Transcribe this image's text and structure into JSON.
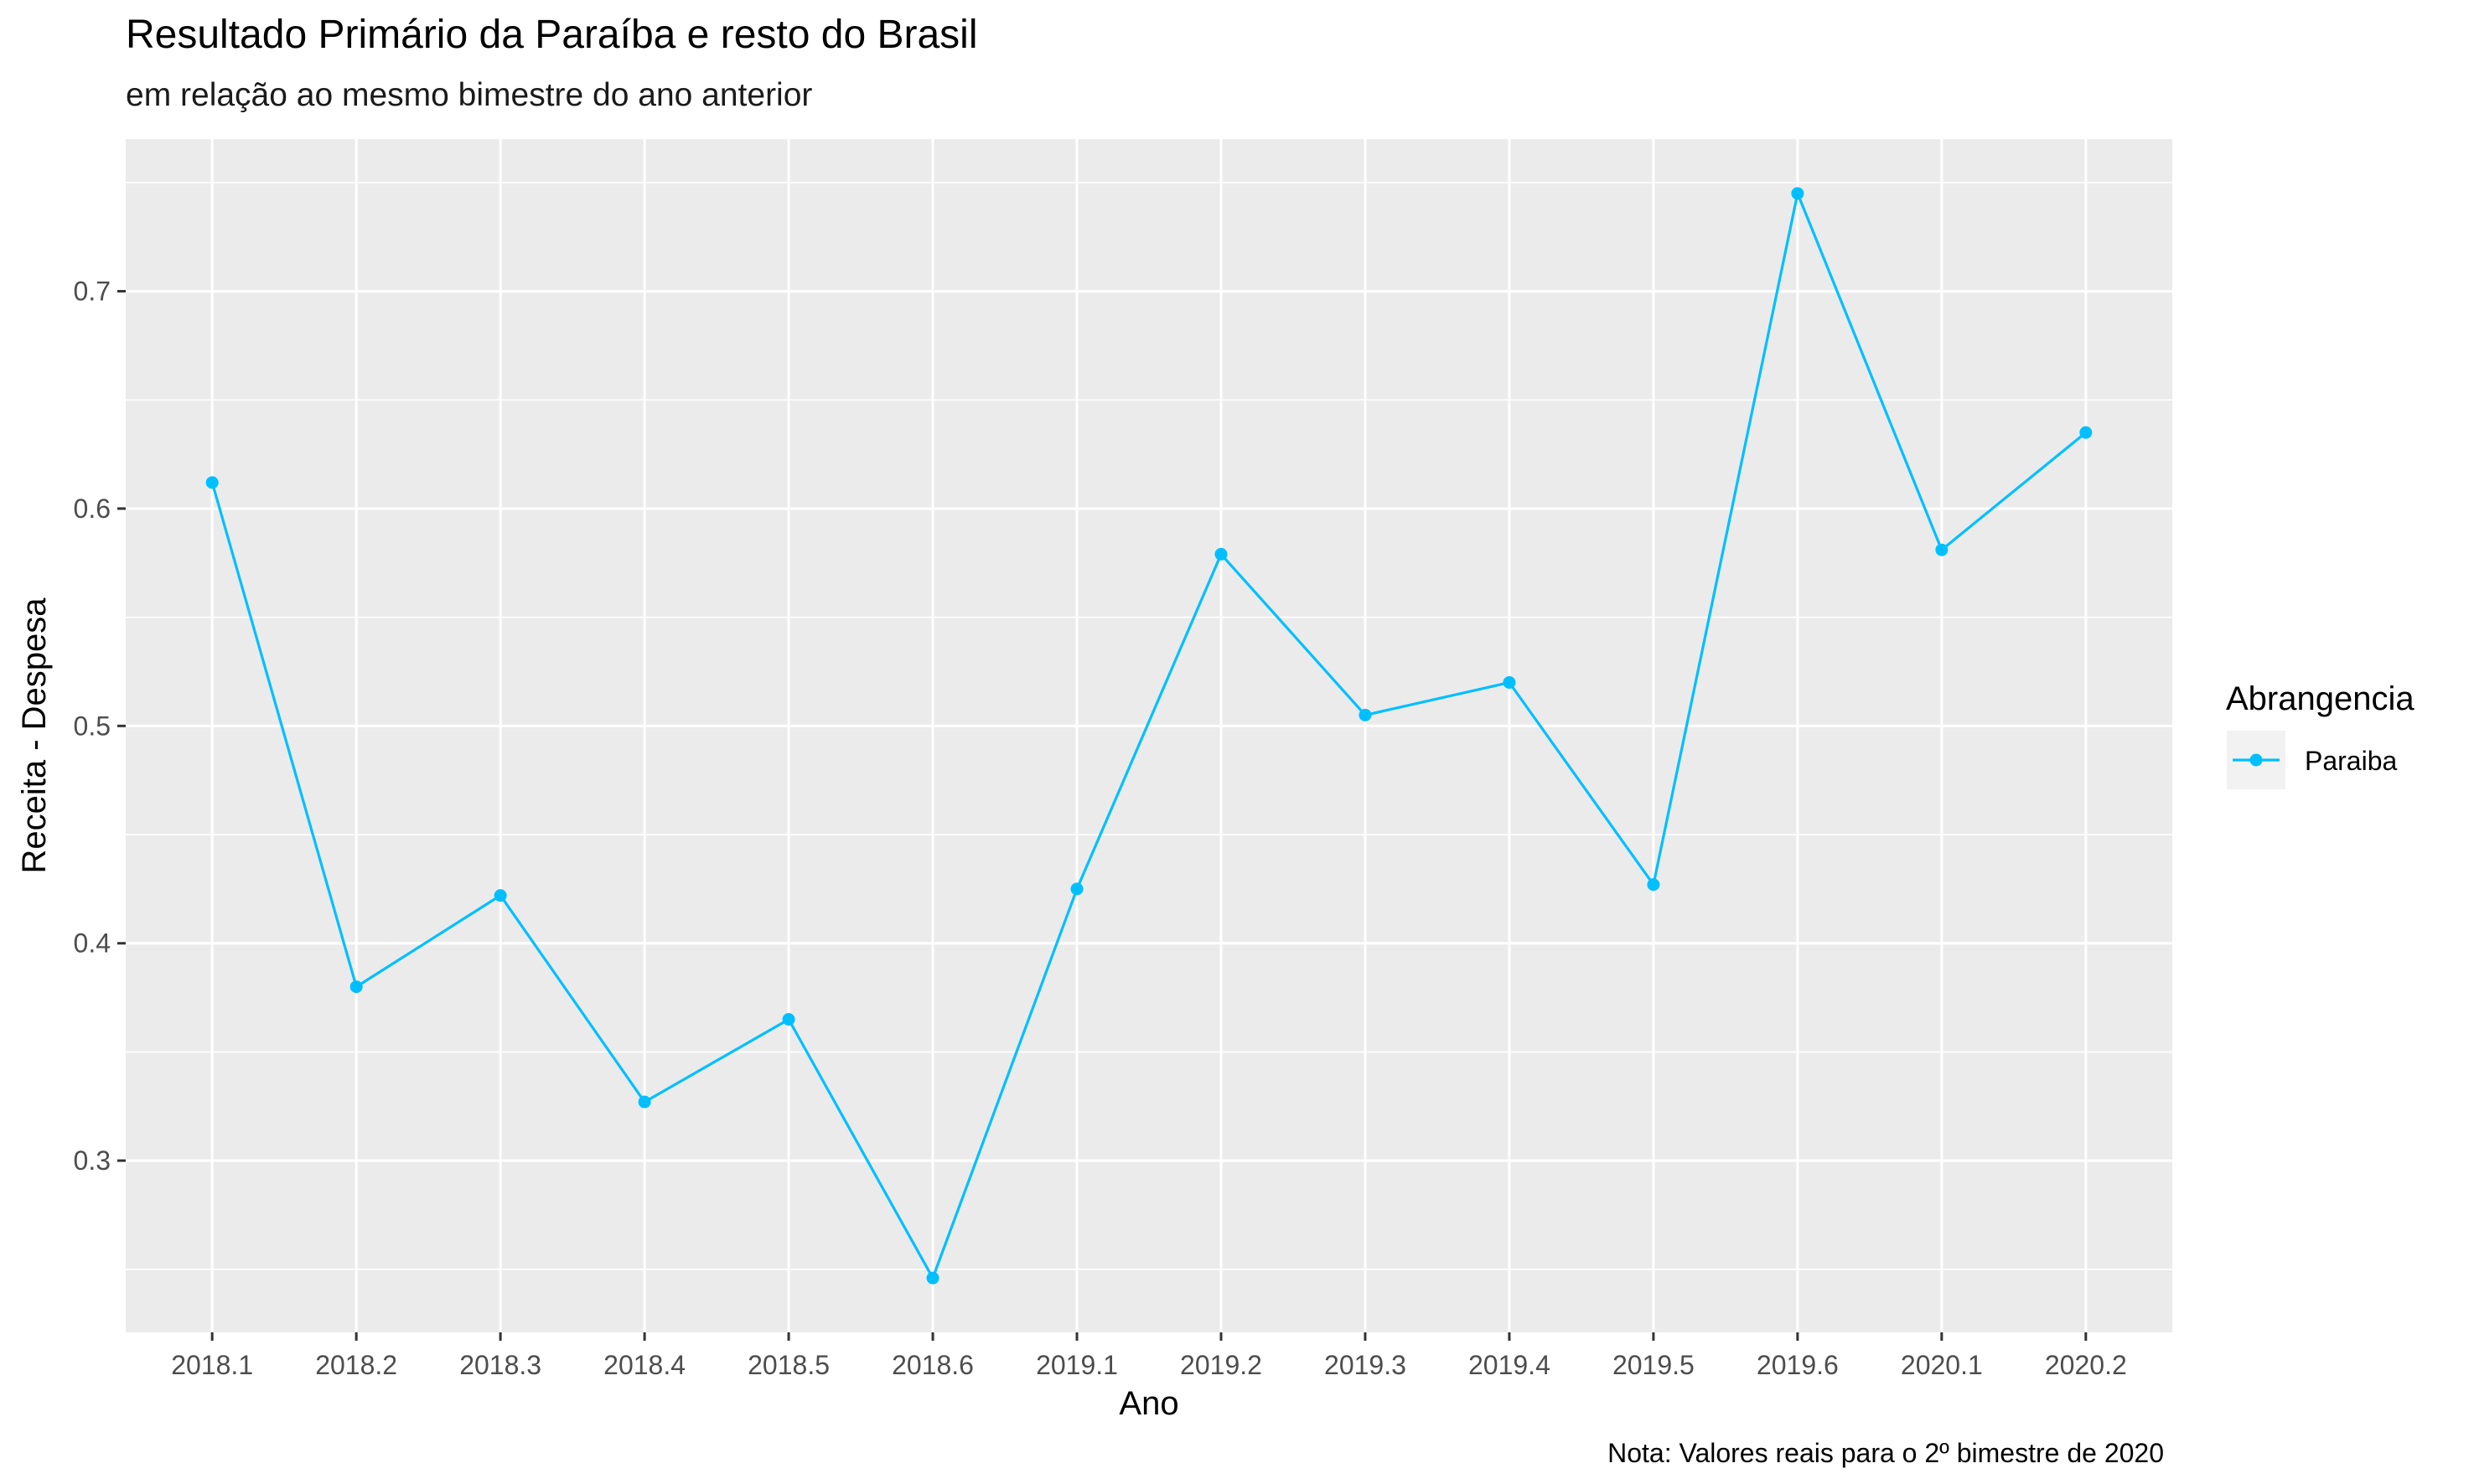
{
  "chart_data": {
    "type": "line",
    "title": "Resultado Primário da Paraíba e resto do Brasil",
    "subtitle": "em relação ao mesmo bimestre do ano anterior",
    "caption": "Nota: Valores reais para o 2º bimestre de 2020",
    "xlabel": "Ano",
    "ylabel": "Receita - Despesa",
    "categories": [
      "2018.1",
      "2018.2",
      "2018.3",
      "2018.4",
      "2018.5",
      "2018.6",
      "2019.1",
      "2019.2",
      "2019.3",
      "2019.4",
      "2019.5",
      "2019.6",
      "2020.1",
      "2020.2"
    ],
    "series": [
      {
        "name": "Paraiba",
        "color": "#00BFFF",
        "values": [
          0.612,
          0.38,
          0.422,
          0.327,
          0.365,
          0.246,
          0.425,
          0.579,
          0.505,
          0.52,
          0.427,
          0.745,
          0.581,
          0.635
        ]
      }
    ],
    "yticks": [
      0.3,
      0.4,
      0.5,
      0.6,
      0.7
    ],
    "ytick_labels": [
      "0.3",
      "0.4",
      "0.5",
      "0.6",
      "0.7"
    ],
    "ylim": [
      0.221,
      0.77
    ],
    "grid": true,
    "legend": {
      "title": "Abrangencia",
      "position": "right"
    },
    "panel_color": "#EBEBEB",
    "grid_color": "#FFFFFF"
  }
}
